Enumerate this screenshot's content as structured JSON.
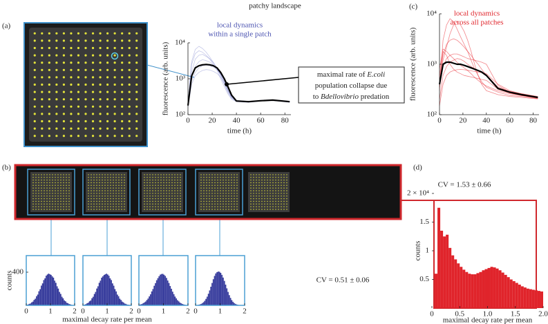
{
  "title": "patchy landscape",
  "panel_labels": [
    "(a)",
    "(b)",
    "(c)",
    "(d)"
  ],
  "annotation": [
    [
      {
        "text": "maximal rate of "
      },
      {
        "text": "E.coli",
        "italic": true
      }
    ],
    [
      {
        "text": "population collapse due"
      }
    ],
    [
      {
        "text": "to "
      },
      {
        "text": "Bdellovibrio",
        "italic": true
      },
      {
        "text": " predation"
      }
    ]
  ],
  "b_xlabel": "maximal decay rate per mean",
  "b_cv": "CV = 0.51 ± 0.06",
  "chart_data": [
    {
      "type": "line",
      "title": [
        "local dynamics",
        "within a single patch"
      ],
      "title_color": "#4a52b0",
      "xlabel": "time (h)",
      "ylabel": "fluorescence (arb. units)",
      "log_y": true,
      "xlim": [
        0,
        85
      ],
      "xticks": [
        0,
        20,
        40,
        60,
        80
      ],
      "ylim": [
        100,
        10000
      ],
      "yticks": [
        {
          "value": 100,
          "label": "10²"
        },
        {
          "value": 1000,
          "label": "10³"
        },
        {
          "value": 10000,
          "label": "10⁴"
        }
      ],
      "x": [
        0,
        3,
        6,
        9,
        12,
        15,
        18,
        21,
        24,
        27,
        30,
        33,
        36,
        40,
        50,
        60,
        70,
        84
      ],
      "series": [
        {
          "color": "#5a62c0",
          "opacity": 0.35,
          "width": 0.8,
          "values": [
            200,
            2500,
            5000,
            6000,
            5500,
            4500,
            3500,
            2500,
            1700,
            1000,
            600,
            380,
            270,
            230,
            220,
            240,
            250,
            230
          ]
        },
        {
          "color": "#5a62c0",
          "opacity": 0.35,
          "width": 0.8,
          "values": [
            170,
            1500,
            3500,
            4500,
            4800,
            4200,
            3600,
            2800,
            2000,
            1300,
            800,
            450,
            300,
            240,
            230,
            250,
            260,
            235
          ]
        },
        {
          "color": "#5a62c0",
          "opacity": 0.35,
          "width": 0.8,
          "values": [
            190,
            900,
            1500,
            2000,
            2300,
            2400,
            2300,
            2100,
            1800,
            1400,
            900,
            550,
            330,
            250,
            235,
            245,
            255,
            225
          ]
        },
        {
          "color": "#5a62c0",
          "opacity": 0.35,
          "width": 0.8,
          "values": [
            160,
            700,
            1200,
            1500,
            1700,
            1800,
            1750,
            1600,
            1400,
            1100,
            750,
            480,
            320,
            240,
            230,
            240,
            250,
            220
          ]
        },
        {
          "color": "#5a62c0",
          "opacity": 0.35,
          "width": 0.8,
          "values": [
            210,
            3000,
            6500,
            8000,
            7000,
            5500,
            4000,
            2800,
            1900,
            1200,
            700,
            420,
            290,
            235,
            225,
            240,
            255,
            232
          ]
        },
        {
          "color": "#5a62c0",
          "opacity": 0.35,
          "width": 0.8,
          "values": [
            180,
            1100,
            2200,
            3000,
            3400,
            3200,
            2900,
            2400,
            1900,
            1300,
            850,
            500,
            310,
            245,
            232,
            248,
            258,
            228
          ]
        },
        {
          "color": "#000000",
          "opacity": 1,
          "width": 2.2,
          "values": [
            180,
            1200,
            2000,
            2300,
            2450,
            2500,
            2450,
            2300,
            2000,
            1500,
            1000,
            600,
            350,
            240,
            230,
            245,
            255,
            230
          ]
        }
      ],
      "point": {
        "x": 32,
        "y": 700
      }
    },
    {
      "type": "line",
      "title": [
        "local dynamics",
        "across all patches"
      ],
      "title_color": "#e0242b",
      "xlabel": "time (h)",
      "ylabel": "fluorescence (arb. units)",
      "log_y": true,
      "xlim": [
        0,
        85
      ],
      "xticks": [
        0,
        20,
        40,
        60,
        80
      ],
      "ylim": [
        100,
        10000
      ],
      "yticks": [
        {
          "value": 100,
          "label": "10²"
        },
        {
          "value": 1000,
          "label": "10³"
        },
        {
          "value": 10000,
          "label": "10⁴"
        }
      ],
      "x": [
        0,
        3,
        6,
        9,
        12,
        15,
        18,
        21,
        24,
        27,
        30,
        33,
        36,
        40,
        50,
        60,
        70,
        84
      ],
      "series": [
        {
          "color": "#e8202a",
          "opacity": 0.55,
          "width": 0.8,
          "values": [
            300,
            3000,
            6000,
            8000,
            7000,
            5000,
            3500,
            2500,
            1800,
            1200,
            800,
            600,
            450,
            350,
            280,
            240,
            230,
            210
          ]
        },
        {
          "color": "#e8202a",
          "opacity": 0.55,
          "width": 0.8,
          "values": [
            500,
            1500,
            2500,
            3000,
            3200,
            3000,
            2600,
            2200,
            1800,
            1500,
            1200,
            1000,
            800,
            600,
            320,
            270,
            240,
            215
          ]
        },
        {
          "color": "#e8202a",
          "opacity": 0.55,
          "width": 0.8,
          "values": [
            200,
            600,
            900,
            1100,
            1200,
            1300,
            1250,
            1150,
            1000,
            900,
            820,
            760,
            700,
            620,
            350,
            290,
            260,
            230
          ]
        },
        {
          "color": "#e8202a",
          "opacity": 0.55,
          "width": 0.8,
          "values": [
            800,
            2000,
            1800,
            1500,
            1300,
            1100,
            950,
            850,
            750,
            650,
            550,
            480,
            420,
            370,
            300,
            260,
            240,
            220
          ]
        },
        {
          "color": "#e8202a",
          "opacity": 0.55,
          "width": 0.8,
          "values": [
            150,
            400,
            600,
            700,
            750,
            780,
            790,
            780,
            760,
            740,
            720,
            700,
            680,
            650,
            400,
            300,
            260,
            225
          ]
        },
        {
          "color": "#e8202a",
          "opacity": 0.55,
          "width": 0.8,
          "values": [
            400,
            1200,
            2200,
            4000,
            6000,
            7000,
            6000,
            4500,
            3000,
            1800,
            1000,
            600,
            400,
            300,
            250,
            230,
            220,
            205
          ]
        },
        {
          "color": "#e8202a",
          "opacity": 0.55,
          "width": 0.8,
          "values": [
            350,
            900,
            1300,
            1500,
            1600,
            1600,
            1500,
            1400,
            1300,
            1250,
            1200,
            1150,
            1100,
            1000,
            380,
            280,
            245,
            215
          ]
        },
        {
          "color": "#e8202a",
          "opacity": 0.55,
          "width": 0.8,
          "values": [
            600,
            1800,
            1500,
            1000,
            800,
            700,
            650,
            600,
            580,
            560,
            540,
            520,
            500,
            480,
            320,
            270,
            240,
            210
          ]
        },
        {
          "color": "#000000",
          "opacity": 1,
          "width": 2.2,
          "values": [
            400,
            1000,
            1100,
            1100,
            1050,
            1000,
            1000,
            950,
            900,
            850,
            800,
            750,
            700,
            600,
            330,
            280,
            250,
            220
          ]
        }
      ]
    },
    {
      "type": "histogram",
      "color": "#3a3f9e",
      "frame_color": "#4a9fd4",
      "ylabel": "counts",
      "xlim": [
        0,
        2
      ],
      "xticks": [
        0,
        1,
        2
      ],
      "ylim": [
        0,
        600
      ],
      "yticks": [
        400
      ],
      "bins": [
        0,
        0.05,
        0.1,
        0.15,
        0.2,
        0.25,
        0.3,
        0.35,
        0.4,
        0.45,
        0.5,
        0.55,
        0.6,
        0.65,
        0.7,
        0.75,
        0.8,
        0.85,
        0.9,
        0.95,
        1,
        1.05,
        1.1,
        1.15,
        1.2,
        1.25,
        1.3,
        1.35,
        1.4,
        1.45,
        1.5,
        1.55,
        1.6,
        1.65,
        1.7,
        1.75,
        1.8,
        1.85,
        1.9,
        1.95,
        2
      ],
      "values": [
        6,
        10,
        18,
        22,
        36,
        45,
        66,
        80,
        110,
        130,
        170,
        195,
        238,
        265,
        305,
        326,
        358,
        372,
        383,
        376,
        368,
        350,
        334,
        298,
        272,
        230,
        202,
        162,
        138,
        104,
        85,
        60,
        49,
        32,
        25,
        16,
        12,
        6,
        4,
        3
      ]
    },
    {
      "type": "histogram",
      "color": "#3a3f9e",
      "frame_color": "#4a9fd4",
      "xlim": [
        0,
        2
      ],
      "xticks": [
        0,
        1,
        2
      ],
      "ylim": [
        0,
        600
      ],
      "bins": [
        0,
        0.05,
        0.1,
        0.15,
        0.2,
        0.25,
        0.3,
        0.35,
        0.4,
        0.45,
        0.5,
        0.55,
        0.6,
        0.65,
        0.7,
        0.75,
        0.8,
        0.85,
        0.9,
        0.95,
        1,
        1.05,
        1.1,
        1.15,
        1.2,
        1.25,
        1.3,
        1.35,
        1.4,
        1.45,
        1.5,
        1.55,
        1.6,
        1.65,
        1.7,
        1.75,
        1.8,
        1.85,
        1.9,
        1.95,
        2
      ],
      "values": [
        5,
        9,
        15,
        25,
        32,
        49,
        60,
        86,
        104,
        137,
        162,
        203,
        230,
        272,
        298,
        334,
        350,
        366,
        375,
        382,
        372,
        357,
        326,
        305,
        265,
        237,
        196,
        168,
        130,
        110,
        80,
        65,
        45,
        36,
        22,
        18,
        10,
        8,
        5,
        2
      ]
    },
    {
      "type": "histogram",
      "color": "#3a3f9e",
      "frame_color": "#4a9fd4",
      "xlim": [
        0,
        2
      ],
      "xticks": [
        0,
        1,
        2
      ],
      "ylim": [
        0,
        600
      ],
      "bins": [
        0,
        0.05,
        0.1,
        0.15,
        0.2,
        0.25,
        0.3,
        0.35,
        0.4,
        0.45,
        0.5,
        0.55,
        0.6,
        0.65,
        0.7,
        0.75,
        0.8,
        0.85,
        0.9,
        0.95,
        1,
        1.05,
        1.1,
        1.15,
        1.2,
        1.25,
        1.3,
        1.35,
        1.4,
        1.45,
        1.5,
        1.55,
        1.6,
        1.65,
        1.7,
        1.75,
        1.8,
        1.85,
        1.9,
        1.95,
        2
      ],
      "values": [
        8,
        12,
        16,
        26,
        35,
        46,
        64,
        82,
        108,
        133,
        168,
        197,
        236,
        268,
        303,
        328,
        352,
        371,
        378,
        380,
        369,
        355,
        331,
        300,
        270,
        233,
        200,
        165,
        135,
        106,
        84,
        62,
        48,
        33,
        24,
        17,
        11,
        7,
        4,
        3
      ]
    },
    {
      "type": "histogram",
      "color": "#3a3f9e",
      "frame_color": "#4a9fd4",
      "xlim": [
        0,
        2
      ],
      "xticks": [
        0,
        1,
        2
      ],
      "ylim": [
        0,
        600
      ],
      "bins": [
        0,
        0.05,
        0.1,
        0.15,
        0.2,
        0.25,
        0.3,
        0.35,
        0.4,
        0.45,
        0.5,
        0.55,
        0.6,
        0.65,
        0.7,
        0.75,
        0.8,
        0.85,
        0.9,
        0.95,
        1,
        1.05,
        1.1,
        1.15,
        1.2,
        1.25,
        1.3,
        1.35,
        1.4,
        1.45,
        1.5,
        1.55,
        1.6,
        1.65,
        1.7,
        1.75,
        1.8,
        1.85,
        1.9,
        1.95,
        2
      ],
      "values": [
        2,
        4,
        7,
        11,
        17,
        26,
        38,
        55,
        78,
        105,
        140,
        180,
        225,
        270,
        315,
        355,
        385,
        400,
        408,
        405,
        392,
        368,
        335,
        295,
        250,
        205,
        162,
        123,
        90,
        63,
        43,
        28,
        18,
        11,
        7,
        4,
        2,
        1,
        1,
        0
      ]
    },
    {
      "type": "histogram",
      "color": "#e0242b",
      "frame_color": "#d0282d",
      "title": "CV = 1.53 ± 0.66",
      "xlabel": "maximal decay rate per mean",
      "ylabel": "counts",
      "xlim": [
        0,
        2
      ],
      "xticks": [
        0,
        0.5,
        {
          "value": 1,
          "label": "1.0"
        },
        1.5,
        {
          "value": 2,
          "label": "2.0"
        }
      ],
      "ylim": [
        0,
        20000
      ],
      "yticks": [
        {
          "value": 5000,
          "label": "0.5"
        },
        {
          "value": 10000,
          "label": "1"
        },
        {
          "value": 15000,
          "label": "1.5"
        },
        {
          "value": 20000,
          "label": "2 × 10⁴"
        }
      ],
      "bins": [
        0,
        0.05,
        0.1,
        0.15,
        0.2,
        0.25,
        0.3,
        0.35,
        0.4,
        0.45,
        0.5,
        0.55,
        0.6,
        0.65,
        0.7,
        0.75,
        0.8,
        0.85,
        0.9,
        0.95,
        1,
        1.05,
        1.1,
        1.15,
        1.2,
        1.25,
        1.3,
        1.35,
        1.4,
        1.45,
        1.5,
        1.55,
        1.6,
        1.65,
        1.7,
        1.75,
        1.8,
        1.85,
        1.9,
        1.95,
        2
      ],
      "values": [
        0,
        6000,
        17500,
        13500,
        12500,
        12800,
        10500,
        9200,
        8500,
        7800,
        7200,
        6700,
        6300,
        6000,
        5900,
        5900,
        6100,
        6300,
        6600,
        6800,
        7000,
        7200,
        7100,
        6900,
        6600,
        6200,
        5800,
        5400,
        5000,
        4700,
        4400,
        4100,
        3800,
        3600,
        3400,
        3300,
        3200,
        3100,
        3000,
        2900
      ]
    }
  ]
}
